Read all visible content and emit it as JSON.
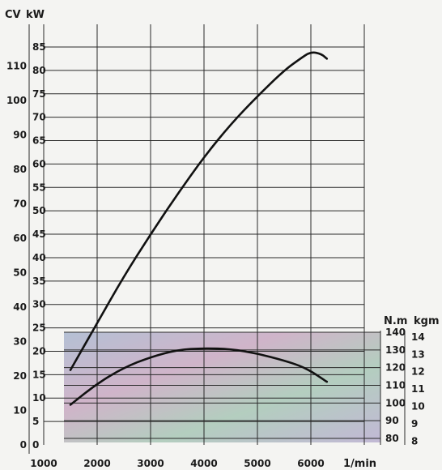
{
  "chart_data": {
    "type": "line",
    "title": "",
    "x": {
      "label": "1/min",
      "ticks": [
        1000,
        2000,
        3000,
        4000,
        5000,
        6000
      ],
      "range": [
        1000,
        7000
      ]
    },
    "y_left_outer": {
      "unit": "CV",
      "ticks": [
        0,
        10,
        20,
        30,
        40,
        50,
        60,
        70,
        80,
        90,
        100,
        110
      ]
    },
    "y_left_inner": {
      "unit": "kW",
      "ticks": [
        0,
        5,
        10,
        15,
        20,
        25,
        30,
        35,
        40,
        45,
        50,
        55,
        60,
        65,
        70,
        75,
        80,
        85
      ],
      "range": [
        0,
        90
      ]
    },
    "y_right_nm": {
      "unit": "N.m",
      "ticks": [
        80,
        90,
        100,
        110,
        120,
        130,
        140
      ],
      "range": [
        77,
        140
      ]
    },
    "y_right_kgm": {
      "unit": "kgm",
      "ticks": [
        8,
        9,
        10,
        11,
        12,
        13,
        14
      ]
    },
    "series": [
      {
        "axis": "kW",
        "x": [
          1500,
          2000,
          2500,
          3000,
          3500,
          4000,
          4500,
          5000,
          5500,
          5800,
          6000,
          6200,
          6300
        ],
        "y": [
          16,
          26,
          36,
          45,
          53.5,
          61.5,
          68.5,
          74.5,
          80,
          82.5,
          84,
          83.5,
          82.5
        ]
      },
      {
        "axis": "N.m",
        "x": [
          1500,
          2000,
          2500,
          3000,
          3500,
          4000,
          4500,
          5000,
          5500,
          5800,
          6000,
          6300
        ],
        "y": [
          99,
          111,
          120,
          126,
          130,
          131,
          130.5,
          128,
          124,
          121,
          118,
          112
        ]
      }
    ],
    "grid": true
  }
}
